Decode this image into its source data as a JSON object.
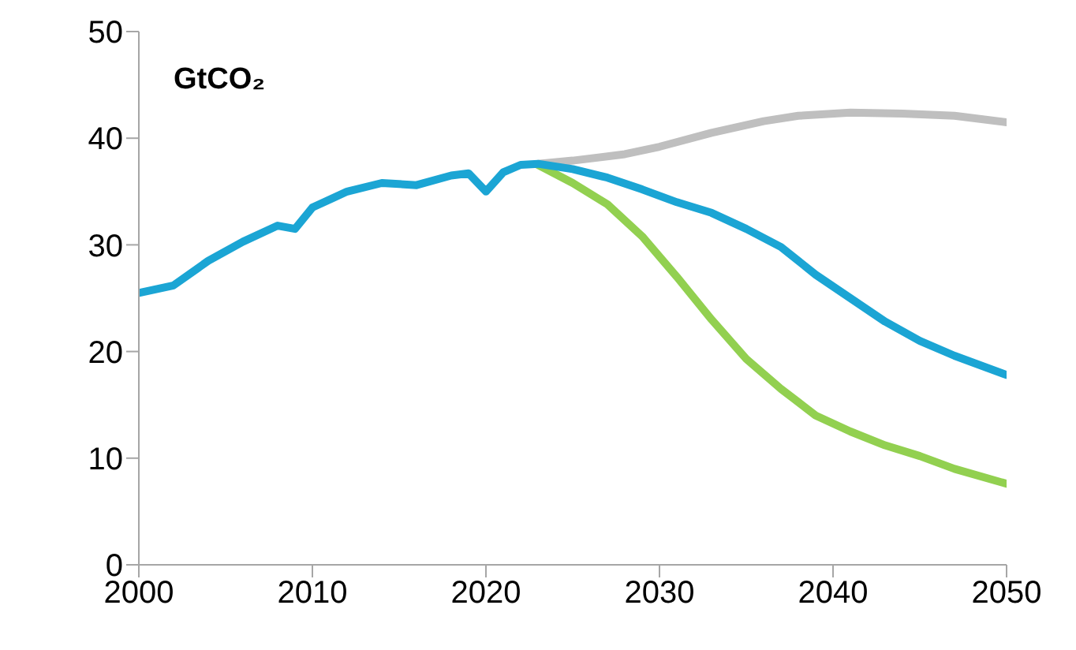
{
  "chart_data": {
    "type": "line",
    "ylabel": "GtCO₂",
    "xlim": [
      2000,
      2050
    ],
    "xticks": [
      2000,
      2010,
      2020,
      2030,
      2040,
      2050
    ],
    "ylim": [
      0,
      50
    ],
    "yticks": [
      0,
      10,
      20,
      30,
      40,
      50
    ],
    "grid": false,
    "marker": "none",
    "line_style": "solid",
    "series": [
      {
        "color": "#bfbfbf",
        "x": [
          2023,
          2025,
          2028,
          2030,
          2033,
          2036,
          2038,
          2041,
          2044,
          2047,
          2050
        ],
        "values": [
          37.6,
          37.9,
          38.5,
          39.2,
          40.5,
          41.6,
          42.1,
          42.4,
          42.3,
          42.1,
          41.5
        ]
      },
      {
        "color": "#92d050",
        "x": [
          2023,
          2025,
          2027,
          2029,
          2031,
          2033,
          2035,
          2037,
          2039,
          2041,
          2043,
          2045,
          2047,
          2050
        ],
        "values": [
          37.5,
          35.8,
          33.8,
          30.8,
          27,
          23,
          19.3,
          16.5,
          14,
          12.5,
          11.2,
          10.2,
          9,
          7.6
        ]
      },
      {
        "color": "#1ba5d4",
        "x": [
          2000,
          2002,
          2004,
          2006,
          2008,
          2009,
          2010,
          2012,
          2014,
          2016,
          2018,
          2019,
          2020,
          2021,
          2022,
          2023,
          2025,
          2027,
          2029,
          2031,
          2033,
          2035,
          2037,
          2039,
          2041,
          2043,
          2045,
          2047,
          2050
        ],
        "values": [
          25.5,
          26.2,
          28.5,
          30.3,
          31.8,
          31.5,
          33.5,
          35,
          35.8,
          35.6,
          36.5,
          36.7,
          35,
          36.8,
          37.5,
          37.6,
          37.1,
          36.3,
          35.2,
          34,
          33,
          31.5,
          29.8,
          27.2,
          25,
          22.8,
          21,
          19.6,
          17.8
        ]
      }
    ]
  }
}
